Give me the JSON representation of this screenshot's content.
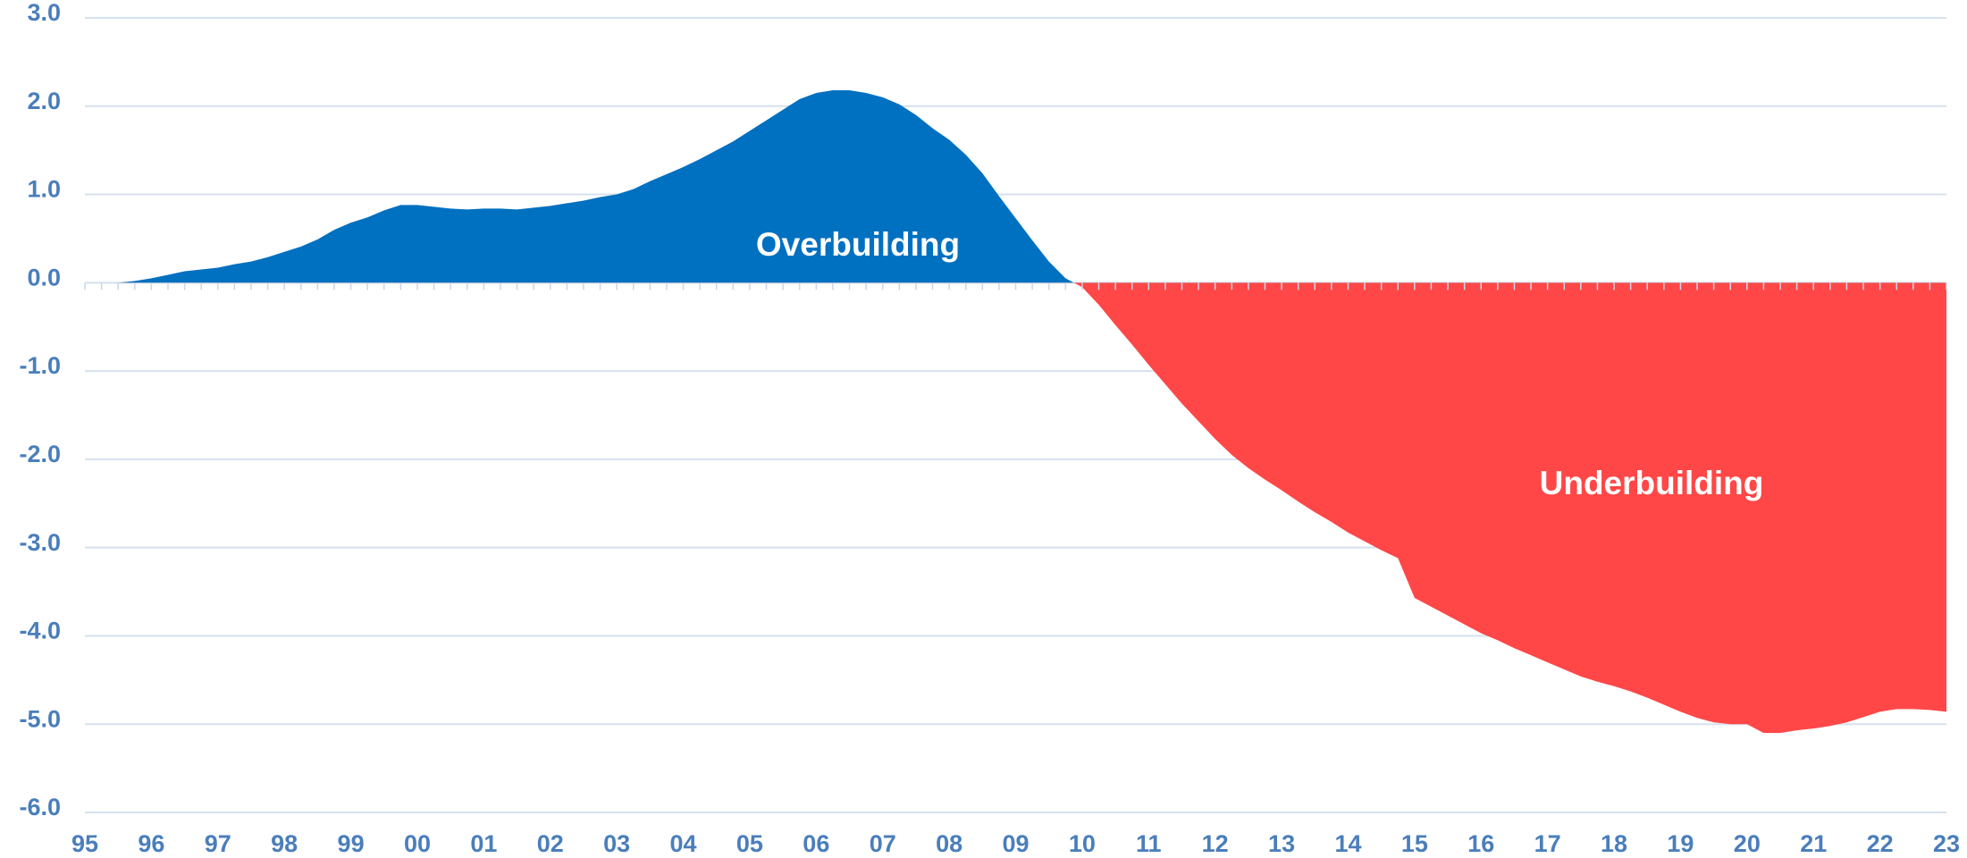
{
  "chart_data": {
    "type": "area",
    "annotations": [
      "Overbuilding",
      "Underbuilding"
    ],
    "categories": [
      "95",
      null,
      null,
      null,
      "96",
      null,
      null,
      null,
      "97",
      null,
      null,
      null,
      "98",
      null,
      null,
      null,
      "99",
      null,
      null,
      null,
      "00",
      null,
      null,
      null,
      "01",
      null,
      null,
      null,
      "02",
      null,
      null,
      null,
      "03",
      null,
      null,
      null,
      "04",
      null,
      null,
      null,
      "05",
      null,
      null,
      null,
      "06",
      null,
      null,
      null,
      "07",
      null,
      null,
      null,
      "08",
      null,
      null,
      null,
      "09",
      null,
      null,
      null,
      "10",
      null,
      null,
      null,
      "11",
      null,
      null,
      null,
      "12",
      null,
      null,
      null,
      "13",
      null,
      null,
      null,
      "14",
      null,
      null,
      null,
      "15",
      null,
      null,
      null,
      "16",
      null,
      null,
      null,
      "17",
      null,
      null,
      null,
      "18",
      null,
      null,
      null,
      "19",
      null,
      null,
      null,
      "20",
      null,
      null,
      null,
      "21",
      null,
      null,
      null,
      "22",
      null,
      null,
      null,
      "23"
    ],
    "values": [
      0,
      0,
      0,
      0.02,
      0.05,
      0.09,
      0.13,
      0.15,
      0.17,
      0.21,
      0.24,
      0.29,
      0.35,
      0.41,
      0.49,
      0.6,
      0.68,
      0.74,
      0.82,
      0.88,
      0.88,
      0.86,
      0.84,
      0.83,
      0.84,
      0.84,
      0.83,
      0.85,
      0.87,
      0.9,
      0.93,
      0.97,
      1.0,
      1.06,
      1.15,
      1.23,
      1.31,
      1.4,
      1.5,
      1.6,
      1.72,
      1.84,
      1.96,
      2.08,
      2.15,
      2.18,
      2.18,
      2.15,
      2.1,
      2.02,
      1.9,
      1.75,
      1.62,
      1.45,
      1.24,
      0.98,
      0.73,
      0.48,
      0.24,
      0.05,
      -0.05,
      -0.25,
      -0.48,
      -0.7,
      -0.93,
      -1.15,
      -1.37,
      -1.57,
      -1.77,
      -1.95,
      -2.1,
      -2.23,
      -2.35,
      -2.48,
      -2.6,
      -2.71,
      -2.83,
      -2.93,
      -3.03,
      -3.12,
      -3.57,
      -3.67,
      -3.77,
      -3.87,
      -3.97,
      -4.05,
      -4.14,
      -4.22,
      -4.3,
      -4.38,
      -4.46,
      -4.52,
      -4.57,
      -4.63,
      -4.7,
      -4.78,
      -4.86,
      -4.93,
      -4.98,
      -5.0,
      -5.0,
      -5.1,
      -5.1,
      -5.07,
      -5.05,
      -5.02,
      -4.98,
      -4.92,
      -4.86,
      -4.83,
      -4.83,
      -4.84,
      -4.86
    ],
    "positive_color": "#0070c0",
    "negative_color": "#ff4747",
    "ylim": [
      -6,
      3
    ],
    "yticks": [
      {
        "value": -6,
        "label": "-6.0"
      },
      {
        "value": -5,
        "label": "-5.0"
      },
      {
        "value": -4,
        "label": "-4.0"
      },
      {
        "value": -3,
        "label": "-3.0"
      },
      {
        "value": -2,
        "label": "-2.0"
      },
      {
        "value": -1,
        "label": "-1.0"
      },
      {
        "value": 0,
        "label": "0.0"
      },
      {
        "value": 1,
        "label": "1.0"
      },
      {
        "value": 2,
        "label": "2.0"
      },
      {
        "value": 3,
        "label": "3.0"
      }
    ],
    "grid": true
  }
}
